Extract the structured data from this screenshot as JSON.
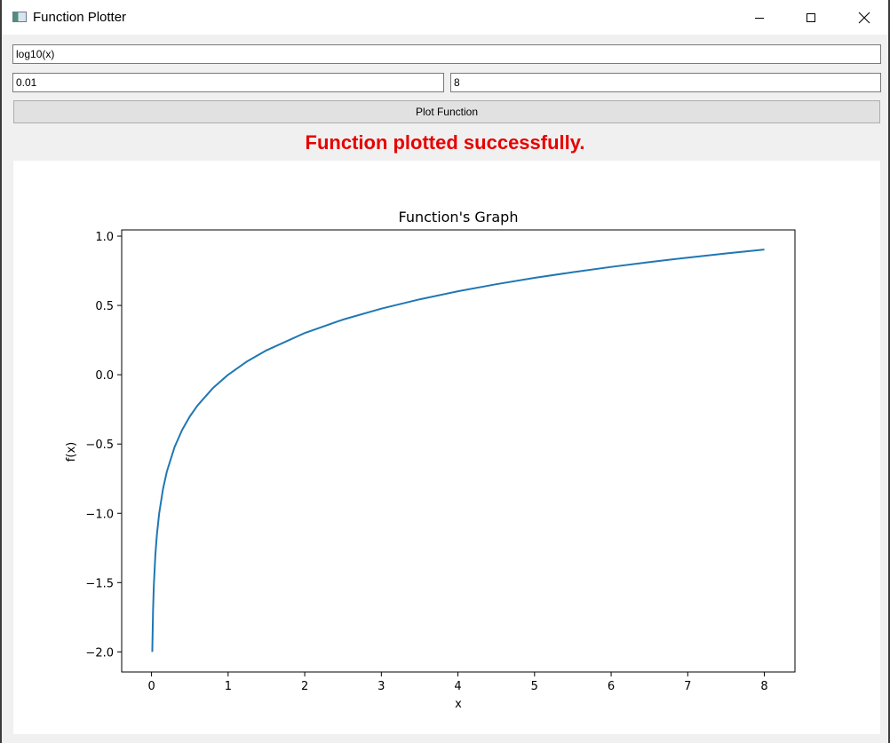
{
  "window": {
    "title": "Function Plotter",
    "icon": "app-window-icon",
    "controls": [
      "minimize-icon",
      "maximize-icon",
      "close-icon"
    ]
  },
  "form": {
    "function_value": "log10(x)",
    "min_value": "0.01",
    "max_value": "8",
    "plot_button_label": "Plot Function"
  },
  "status": {
    "message": "Function plotted successfully.",
    "color": "#e60000"
  },
  "chart_data": {
    "type": "line",
    "title": "Function's Graph",
    "xlabel": "x",
    "ylabel": "f(x)",
    "xlim": [
      -0.3895,
      8.3995
    ],
    "ylim": [
      -2.145,
      1.045
    ],
    "xticks": [
      0,
      1,
      2,
      3,
      4,
      5,
      6,
      7,
      8
    ],
    "xtick_labels": [
      "0",
      "1",
      "2",
      "3",
      "4",
      "5",
      "6",
      "7",
      "8"
    ],
    "yticks": [
      -2.0,
      -1.5,
      -1.0,
      -0.5,
      0.0,
      0.5,
      1.0
    ],
    "ytick_labels": [
      "−2.0",
      "−1.5",
      "−1.0",
      "−0.5",
      "0.0",
      "0.5",
      "1.0"
    ],
    "grid": false,
    "series": [
      {
        "function": "log10(x)",
        "color": "#1f77b4",
        "x": [
          0.01,
          0.02,
          0.03,
          0.05,
          0.07,
          0.1,
          0.15,
          0.2,
          0.3,
          0.4,
          0.5,
          0.6,
          0.8,
          1.0,
          1.25,
          1.5,
          2.0,
          2.5,
          3.0,
          3.5,
          4.0,
          4.5,
          5.0,
          5.5,
          6.0,
          6.5,
          7.0,
          7.5,
          8.0
        ],
        "y": [
          -2.0,
          -1.699,
          -1.523,
          -1.301,
          -1.155,
          -1.0,
          -0.824,
          -0.699,
          -0.523,
          -0.398,
          -0.301,
          -0.222,
          -0.097,
          0.0,
          0.097,
          0.176,
          0.301,
          0.398,
          0.477,
          0.544,
          0.602,
          0.653,
          0.699,
          0.74,
          0.778,
          0.813,
          0.845,
          0.875,
          0.903
        ]
      }
    ]
  }
}
